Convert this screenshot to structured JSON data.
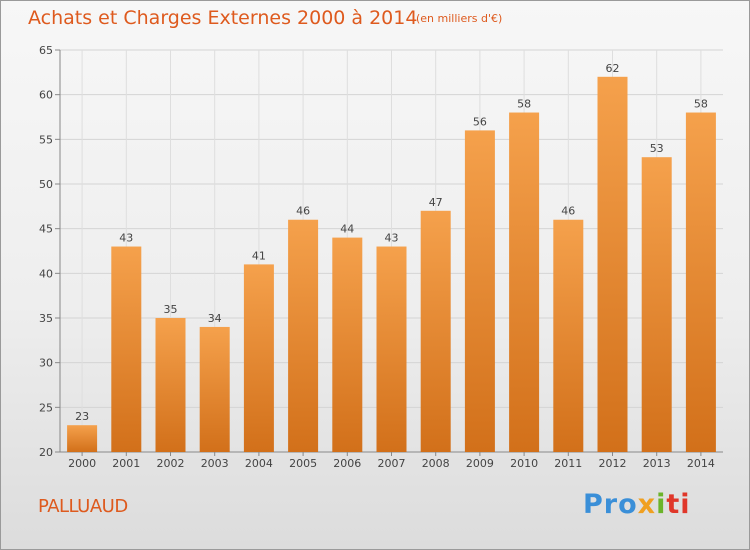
{
  "title": "Achats et Charges Externes 2000 à 2014",
  "subtitle": "(en milliers d'€)",
  "commune": "PALLUAUD",
  "brand": {
    "p1": "Pro",
    "p2": "x",
    "p3": "i",
    "p4": "ti"
  },
  "colors": {
    "bar_top": "#f5a14c",
    "bar_bottom": "#d2701a",
    "accent": "#de5a1e"
  },
  "chart_data": {
    "type": "bar",
    "title": "Achats et Charges Externes 2000 à 2014",
    "subtitle": "(en milliers d'€)",
    "xlabel": "",
    "ylabel": "",
    "categories": [
      "2000",
      "2001",
      "2002",
      "2003",
      "2004",
      "2005",
      "2006",
      "2007",
      "2008",
      "2009",
      "2010",
      "2011",
      "2012",
      "2013",
      "2014"
    ],
    "values": [
      23,
      43,
      35,
      34,
      41,
      46,
      44,
      43,
      47,
      56,
      58,
      46,
      62,
      53,
      58
    ],
    "ylim": [
      20,
      65
    ],
    "yticks": [
      20,
      25,
      30,
      35,
      40,
      45,
      50,
      55,
      60,
      65
    ],
    "grid": true,
    "legend": "none"
  }
}
